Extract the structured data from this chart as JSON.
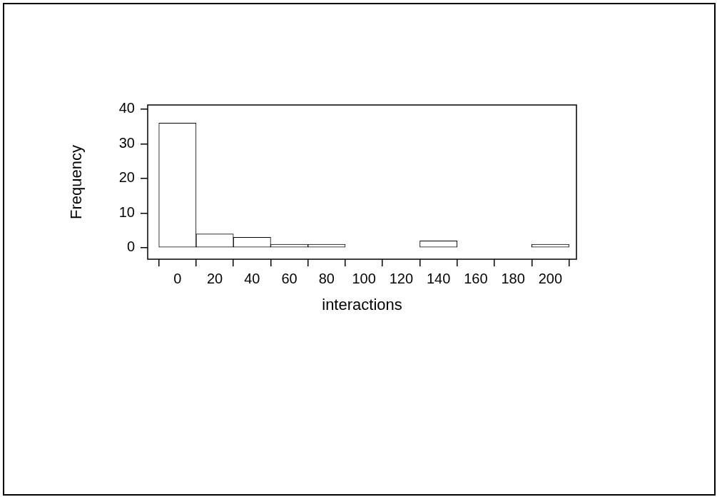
{
  "chart_data": {
    "type": "histogram",
    "xlabel": "interactions",
    "ylabel": "Frequency",
    "bins": [
      -10,
      10,
      30,
      50,
      70,
      90,
      110,
      130,
      150,
      170,
      190,
      210
    ],
    "values": [
      36,
      4,
      3,
      1,
      1,
      0,
      0,
      2,
      0,
      0,
      1
    ],
    "color": "#ffffff",
    "xlim": [
      -16,
      214
    ],
    "xticks": [
      0,
      20,
      40,
      60,
      80,
      100,
      120,
      140,
      160,
      180,
      200
    ],
    "ylim": [
      -3.3,
      41.2
    ],
    "yticks": [
      0,
      10,
      20,
      30,
      40
    ],
    "grid": false
  }
}
